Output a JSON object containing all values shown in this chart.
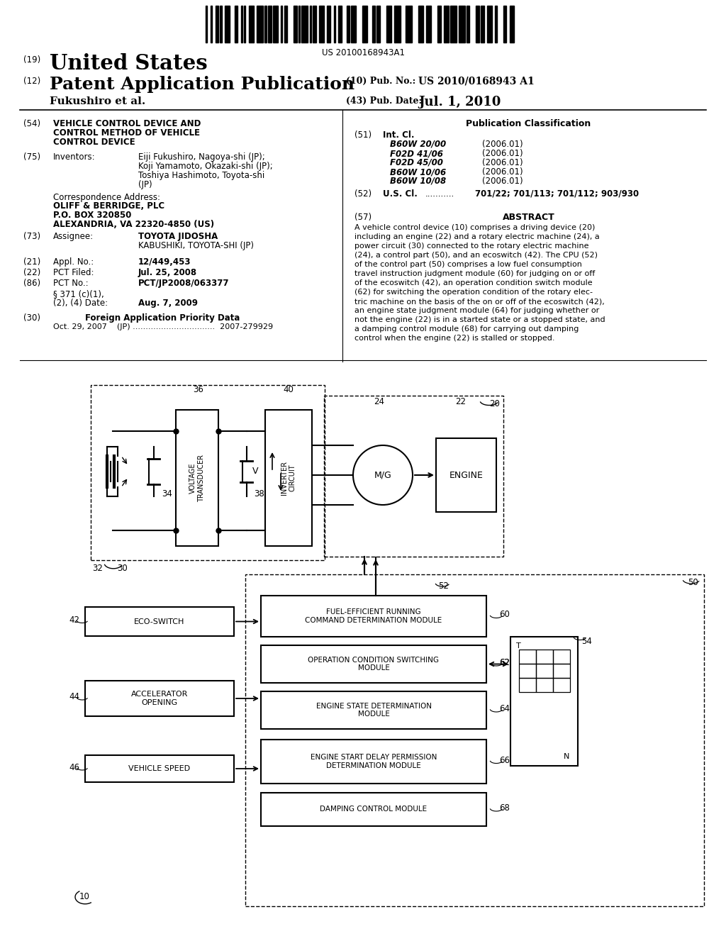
{
  "background_color": "#ffffff",
  "barcode_text": "US 20100168943A1",
  "header": {
    "number_19": "(19)",
    "united_states": "United States",
    "number_12": "(12)",
    "patent_app_pub": "Patent Application Publication",
    "pub_no_label": "(10) Pub. No.:",
    "pub_no_value": "US 2010/0168943 A1",
    "inventor": "Fukushiro et al.",
    "pub_date_label": "(43) Pub. Date:",
    "pub_date_value": "Jul. 1, 2010"
  },
  "left_col": {
    "s54_label": "(54)",
    "s54_lines": [
      "VEHICLE CONTROL DEVICE AND",
      "CONTROL METHOD OF VEHICLE",
      "CONTROL DEVICE"
    ],
    "s75_label": "(75)",
    "s75_title": "Inventors:",
    "s75_lines": [
      "Eiji Fukushiro, Nagoya-shi (JP);",
      "Koji Yamamoto, Okazaki-shi (JP);",
      "Toshiya Hashimoto, Toyota-shi",
      "(JP)"
    ],
    "corr_title": "Correspondence Address:",
    "corr_lines": [
      "OLIFF & BERRIDGE, PLC",
      "P.O. BOX 320850",
      "ALEXANDRIA, VA 22320-4850 (US)"
    ],
    "s73_label": "(73)",
    "s73_title": "Assignee:",
    "s73_lines": [
      "TOYOTA JIDOSHA",
      "KABUSHIKI, TOYOTA-SHI (JP)"
    ],
    "s21_label": "(21)",
    "s21_title": "Appl. No.:",
    "s21_val": "12/449,453",
    "s22_label": "(22)",
    "s22_title": "PCT Filed:",
    "s22_val": "Jul. 25, 2008",
    "s86_label": "(86)",
    "s86_title": "PCT No.:",
    "s86_val": "PCT/JP2008/063377",
    "s371_line1": "§ 371 (c)(1),",
    "s371_line2": "(2), (4) Date:",
    "s371_val": "Aug. 7, 2009",
    "s30_label": "(30)",
    "s30_title": "Foreign Application Priority Data",
    "s30_text": "Oct. 29, 2007    (JP) ................................  2007-279929"
  },
  "right_col": {
    "pub_class_title": "Publication Classification",
    "s51_label": "(51)",
    "s51_title": "Int. Cl.",
    "classifications": [
      [
        "B60W 20/00",
        "(2006.01)"
      ],
      [
        "F02D 41/06",
        "(2006.01)"
      ],
      [
        "F02D 45/00",
        "(2006.01)"
      ],
      [
        "B60W 10/06",
        "(2006.01)"
      ],
      [
        "B60W 10/08",
        "(2006.01)"
      ]
    ],
    "s52_label": "(52)",
    "s52_title": "U.S. Cl.",
    "s52_dots": "...........",
    "s52_val": "701/22; 701/113; 701/112; 903/930",
    "s57_label": "(57)",
    "s57_title": "ABSTRACT",
    "abstract_lines": [
      "A vehicle control device (10) comprises a driving device (20)",
      "including an engine (22) and a rotary electric machine (24), a",
      "power circuit (30) connected to the rotary electric machine",
      "(24), a control part (50), and an ecoswitch (42). The CPU (52)",
      "of the control part (50) comprises a low fuel consumption",
      "travel instruction judgment module (60) for judging on or off",
      "of the ecoswitch (42), an operation condition switch module",
      "(62) for switching the operation condition of the rotary elec-",
      "tric machine on the basis of the on or off of the ecoswitch (42),",
      "an engine state judgment module (64) for judging whether or",
      "not the engine (22) is in a started state or a stopped state, and",
      "a damping control module (68) for carrying out damping",
      "control when the engine (22) is stalled or stopped."
    ]
  }
}
